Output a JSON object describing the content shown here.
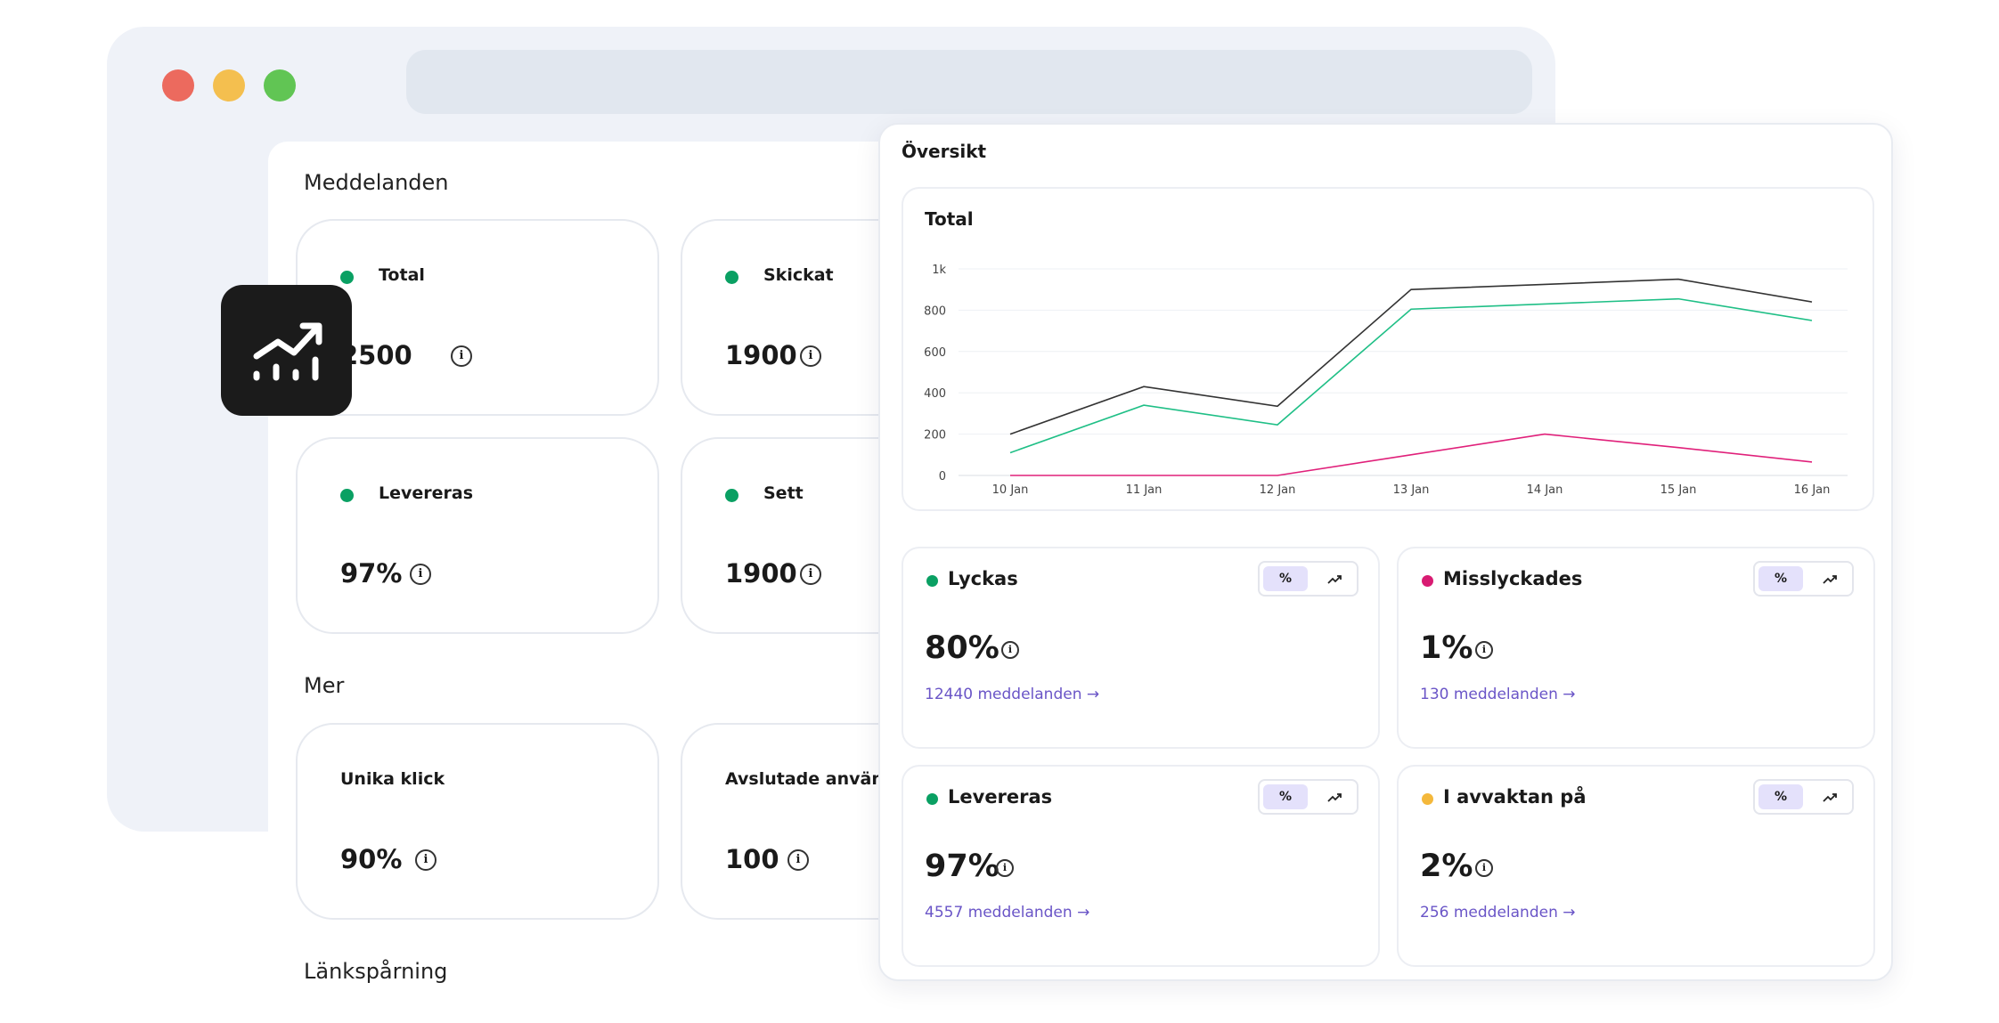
{
  "dashboard": {
    "section_messages": "Meddelanden",
    "section_more": "Mer",
    "section_links": "Länkspårning",
    "cards": [
      {
        "label": "Total",
        "value": "2500",
        "dot_color": "#0aa063"
      },
      {
        "label": "Skickat",
        "value": "1900",
        "dot_color": "#0aa063"
      },
      {
        "label": "Levereras",
        "value": "97%",
        "dot_color": "#0aa063"
      },
      {
        "label": "Sett",
        "value": "1900",
        "dot_color": "#0aa063"
      },
      {
        "label": "Unika klick",
        "value": "90%"
      },
      {
        "label": "Avslutade användare",
        "value": "100"
      }
    ],
    "info_glyph": "i"
  },
  "app_icon": "trending-chart-icon",
  "overview": {
    "title": "Översikt",
    "chart_data": {
      "type": "line",
      "title": "Total",
      "categories": [
        "10 Jan",
        "11 Jan",
        "12 Jan",
        "13 Jan",
        "14 Jan",
        "15 Jan",
        "16 Jan"
      ],
      "y_ticks": [
        "0",
        "200",
        "400",
        "600",
        "800",
        "1k"
      ],
      "ylim": [
        0,
        1000
      ],
      "grid": true,
      "series": [
        {
          "color": "#333333",
          "values": [
            200,
            430,
            335,
            900,
            925,
            950,
            840
          ]
        },
        {
          "color": "#1fbf86",
          "values": [
            110,
            340,
            245,
            805,
            830,
            855,
            750
          ]
        },
        {
          "color": "#e0207a",
          "values": [
            0,
            0,
            0,
            100,
            200,
            135,
            65
          ]
        }
      ]
    },
    "metrics": [
      {
        "label": "Lyckas",
        "value": "80%",
        "link": "12440 meddelanden →",
        "dot_color": "#0aa063"
      },
      {
        "label": "Misslyckades",
        "value": "1%",
        "link": "130 meddelanden →",
        "dot_color": "#d81b72"
      },
      {
        "label": "Levereras",
        "value": "97%",
        "link": "4557 meddelanden →",
        "dot_color": "#0aa063"
      },
      {
        "label": "I avvaktan på",
        "value": "2%",
        "link": "256  meddelanden →",
        "dot_color": "#f4b83b"
      }
    ],
    "toggle_percent": "%",
    "toggle_trend_icon": "trend-up-icon"
  }
}
